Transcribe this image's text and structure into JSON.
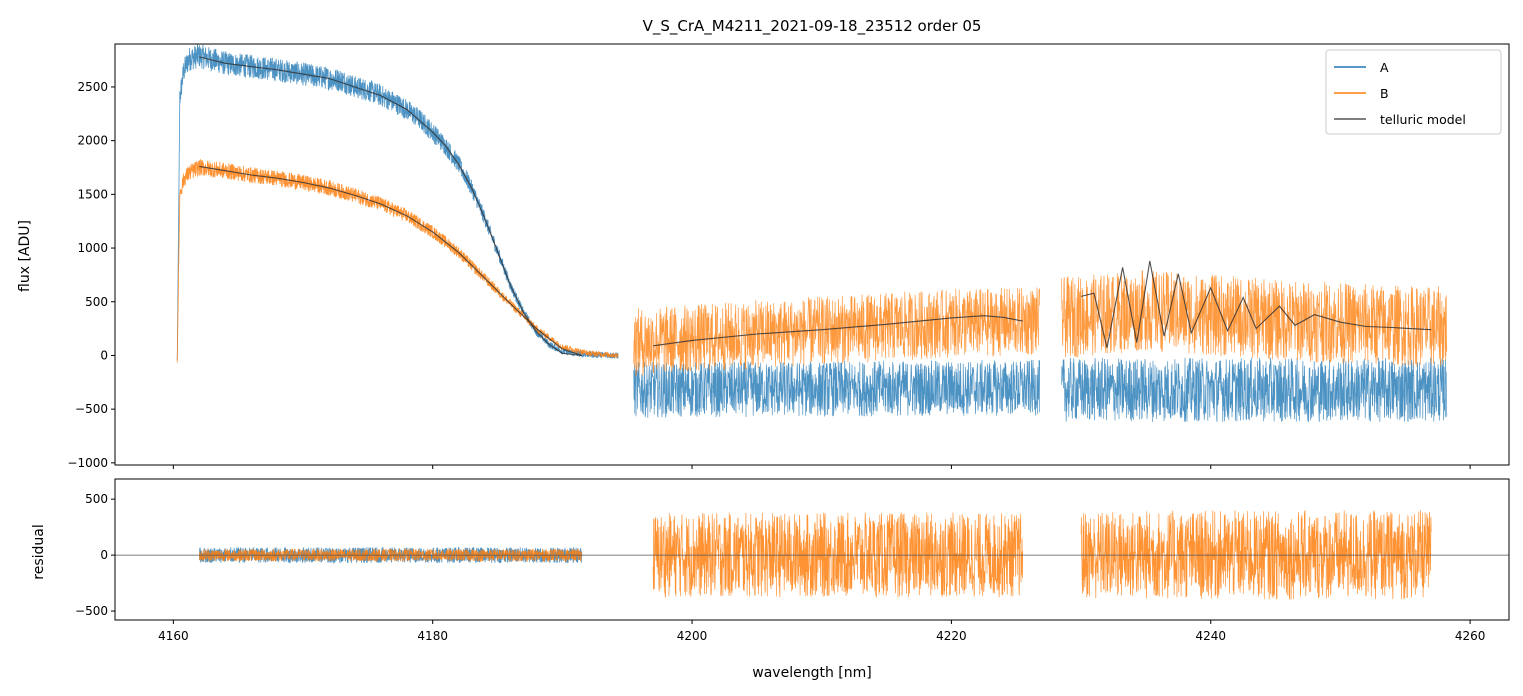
{
  "chart_data": [
    {
      "type": "line",
      "title": "V_S_CrA_M4211_2021-09-18_23512  order 05",
      "xlabel": "",
      "ylabel": "flux [ADU]",
      "xlim": [
        4155.5,
        4263.0
      ],
      "ylim": [
        -1020,
        2900
      ],
      "yticks": [
        -1000,
        -500,
        0,
        500,
        1000,
        1500,
        2000,
        2500
      ],
      "ytick_labels": [
        "−1000",
        "−500",
        "0",
        "500",
        "1000",
        "1500",
        "2000",
        "2500"
      ],
      "legend": {
        "placement": "top-right",
        "entries": [
          {
            "label": "A",
            "color": "#1f77b4"
          },
          {
            "label": "B",
            "color": "#ff7f0e"
          },
          {
            "label": "telluric model",
            "color": "#555555"
          }
        ]
      },
      "series": [
        {
          "name": "A",
          "color": "#1f77b4",
          "segments": [
            {
              "x": [
                4160.3,
                4160.5,
                4160.8,
                4161.2,
                4162.0,
                4164.0,
                4166.0,
                4168.0,
                4170.0,
                4172.0,
                4173.0,
                4174.0,
                4175.0,
                4176.0,
                4177.0,
                4178.0,
                4179.0,
                4180.0,
                4181.0,
                4182.0,
                4183.0,
                4184.0,
                4185.0,
                4186.0,
                4187.0,
                4188.0,
                4189.0,
                4190.0,
                4191.0,
                4192.0,
                4193.0,
                4194.3
              ],
              "y": [
                -50,
                2400,
                2650,
                2760,
                2790,
                2720,
                2690,
                2660,
                2620,
                2580,
                2560,
                2500,
                2470,
                2420,
                2360,
                2290,
                2200,
                2080,
                1950,
                1780,
                1560,
                1280,
                970,
                650,
                400,
                220,
                100,
                40,
                20,
                10,
                5,
                0
              ]
            },
            {
              "x": [
                4195.5,
                4226.8
              ],
              "y": [
                -320,
                -300
              ]
            },
            {
              "x": [
                4228.5,
                4258.2
              ],
              "y": [
                -320,
                -320
              ]
            }
          ]
        },
        {
          "name": "B",
          "color": "#ff7f0e",
          "segments": [
            {
              "x": [
                4160.3,
                4160.5,
                4160.8,
                4161.2,
                4162.0,
                4164.0,
                4166.0,
                4168.0,
                4170.0,
                4172.0,
                4174.0,
                4176.0,
                4178.0,
                4180.0,
                4182.0,
                4184.0,
                4186.0,
                4188.0,
                4190.0,
                4192.0,
                4194.3
              ],
              "y": [
                -50,
                1500,
                1640,
                1700,
                1750,
                1720,
                1680,
                1650,
                1610,
                1560,
                1490,
                1410,
                1300,
                1150,
                960,
                720,
                480,
                250,
                80,
                20,
                0
              ]
            },
            {
              "x": [
                4195.5,
                4200.0,
                4210.0,
                4220.0,
                4226.8
              ],
              "y": [
                120,
                160,
                230,
                300,
                320
              ]
            },
            {
              "x": [
                4228.5,
                4235.0,
                4245.0,
                4258.2
              ],
              "y": [
                350,
                420,
                330,
                260
              ]
            }
          ]
        },
        {
          "name": "telluric model",
          "color": "#333333",
          "segments": [
            {
              "x": [
                4162.0,
                4164.0,
                4166.0,
                4168.0,
                4170.0,
                4172.0,
                4174.0,
                4176.0,
                4178.0,
                4180.0,
                4181.0,
                4182.0,
                4183.0,
                4184.0,
                4185.0,
                4186.0,
                4187.0,
                4188.0,
                4189.0,
                4190.0,
                4191.5
              ],
              "y": [
                2780,
                2720,
                2690,
                2660,
                2620,
                2580,
                2500,
                2420,
                2290,
                2080,
                1950,
                1780,
                1560,
                1280,
                970,
                650,
                400,
                220,
                100,
                20,
                0
              ]
            },
            {
              "x": [
                4162.0,
                4164.0,
                4166.0,
                4168.0,
                4170.0,
                4172.0,
                4174.0,
                4176.0,
                4178.0,
                4180.0,
                4182.0,
                4184.0,
                4186.0,
                4188.0,
                4190.0,
                4191.5
              ],
              "y": [
                1760,
                1720,
                1680,
                1650,
                1610,
                1560,
                1490,
                1410,
                1300,
                1150,
                960,
                720,
                480,
                250,
                60,
                0
              ]
            },
            {
              "x": [
                4197.0,
                4200.0,
                4205.0,
                4210.0,
                4215.0,
                4220.0,
                4222.5,
                4224.0,
                4225.5
              ],
              "y": [
                90,
                140,
                200,
                240,
                290,
                350,
                370,
                355,
                320
              ]
            },
            {
              "x": [
                4230.0,
                4231.0,
                4232.0,
                4233.2,
                4234.3,
                4235.3,
                4236.4,
                4237.5,
                4238.5,
                4240.0,
                4241.3,
                4242.5,
                4243.5,
                4245.3,
                4246.5,
                4248.0,
                4250.0,
                4252.0,
                4254.0,
                4257.0
              ],
              "y": [
                550,
                580,
                70,
                820,
                120,
                880,
                180,
                760,
                210,
                630,
                230,
                540,
                250,
                460,
                280,
                380,
                310,
                270,
                260,
                240
              ]
            }
          ]
        }
      ]
    },
    {
      "type": "line",
      "title": "",
      "xlabel": "wavelength [nm]",
      "ylabel": "residual",
      "xlim": [
        4155.5,
        4263.0
      ],
      "ylim": [
        -580,
        680
      ],
      "yticks": [
        -500,
        0,
        500
      ],
      "ytick_labels": [
        "−500",
        "0",
        "500"
      ],
      "xticks": [
        4160,
        4180,
        4200,
        4220,
        4240,
        4260
      ],
      "xtick_labels": [
        "4160",
        "4180",
        "4200",
        "4220",
        "4240",
        "4260"
      ],
      "zero_line": 0,
      "series": [
        {
          "name": "A",
          "color": "#1f77b4",
          "segments": [
            {
              "x": [
                4162.0,
                4191.5
              ],
              "y": [
                0,
                0
              ]
            }
          ]
        },
        {
          "name": "B",
          "color": "#ff7f0e",
          "segments": [
            {
              "x": [
                4162.0,
                4191.5
              ],
              "y": [
                0,
                0
              ]
            },
            {
              "x": [
                4197.0,
                4225.5
              ],
              "y": [
                0,
                0
              ]
            },
            {
              "x": [
                4230.0,
                4257.0
              ],
              "y": [
                0,
                0
              ]
            }
          ]
        }
      ]
    }
  ]
}
